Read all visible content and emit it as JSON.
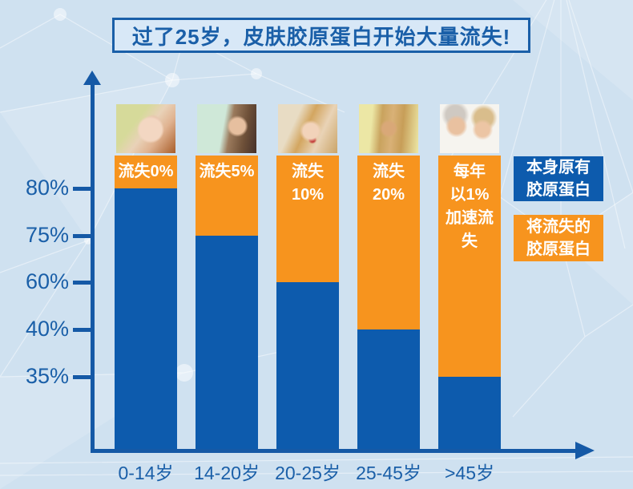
{
  "title": "过了25岁，皮肤胶原蛋白开始大量流失!",
  "colors": {
    "remaining_blue": "#0d5bad",
    "loss_orange": "#f7941e",
    "axis_text_blue": "#1a5fa8",
    "background": "#cfe1f0"
  },
  "legend": {
    "existing": {
      "lines": [
        "本身原有",
        "胶原蛋白"
      ],
      "color": "#0d5bad"
    },
    "loss": {
      "lines": [
        "将流失的",
        "胶原蛋白"
      ],
      "color": "#f7941e"
    }
  },
  "chart_data": {
    "type": "bar",
    "stacked": true,
    "title": "过了25岁，皮肤胶原蛋白开始大量流失!",
    "categories": [
      "0-14岁",
      "14-20岁",
      "20-25岁",
      "25-45岁",
      ">45岁"
    ],
    "y_tick_labels": [
      "80%",
      "75%",
      "60%",
      "40%",
      "35%"
    ],
    "legend_position": "right",
    "grid": false,
    "series": [
      {
        "name": "本身原有胶原蛋白",
        "color": "#0d5bad",
        "values": [
          "80%",
          "75%",
          "60%",
          "40%",
          "35%"
        ]
      },
      {
        "name": "将流失的胶原蛋白",
        "color": "#f7941e",
        "values": [
          "0%",
          "5%",
          "10%",
          "20%",
          "每年以1%加速流失"
        ]
      }
    ],
    "bars": [
      {
        "category": "0-14岁",
        "remaining": "80%",
        "loss_lines": [
          "流失0%"
        ],
        "photo": "baby"
      },
      {
        "category": "14-20岁",
        "remaining": "75%",
        "loss_lines": [
          "流失5%"
        ],
        "photo": "girl"
      },
      {
        "category": "20-25岁",
        "remaining": "60%",
        "loss_lines": [
          "流失",
          "10%"
        ],
        "photo": "young-woman"
      },
      {
        "category": "25-45岁",
        "remaining": "40%",
        "loss_lines": [
          "流失",
          "20%"
        ],
        "photo": "adult-woman"
      },
      {
        "category": ">45岁",
        "remaining": "35%",
        "loss_lines": [
          "每年",
          "以1%",
          "加速流失"
        ],
        "photo": "older-couple"
      }
    ]
  }
}
